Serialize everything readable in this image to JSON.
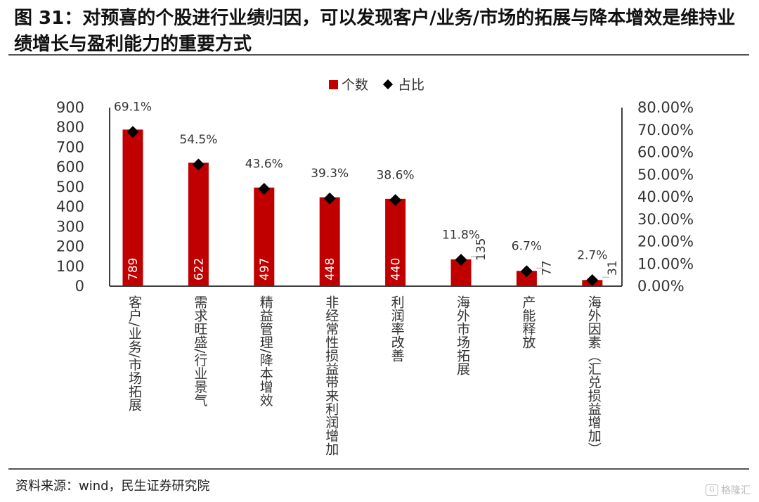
{
  "title": "图 31：对预喜的个股进行业绩归因，可以发现客户/业务/市场的拓展与降本增效是维持业绩增长与盈利能力的重要方式",
  "source": "资料来源：wind，民生证券研究院",
  "watermark": "格隆汇",
  "colors": {
    "bar": "#c00000",
    "marker": "#000000",
    "axis": "#000000",
    "text": "#333333"
  },
  "chart_data": {
    "type": "bar",
    "categories": [
      "客户/业务/市场拓展",
      "需求旺盛/行业景气",
      "精益管理/降本增效",
      "非经常性损益带来利润增加",
      "利润率改善",
      "海外市场拓展",
      "产能释放",
      "海外因素（汇兑损益增加）"
    ],
    "series": [
      {
        "name": "个数",
        "type": "bar",
        "axis": "left",
        "values": [
          789,
          622,
          497,
          448,
          440,
          135,
          77,
          31
        ],
        "labels": [
          "789",
          "622",
          "497",
          "448",
          "440",
          "135",
          "77",
          "31"
        ]
      },
      {
        "name": "占比",
        "type": "marker",
        "axis": "right",
        "values": [
          69.1,
          54.5,
          43.6,
          39.3,
          38.6,
          11.8,
          6.7,
          2.7
        ],
        "labels": [
          "69.1%",
          "54.5%",
          "43.6%",
          "39.3%",
          "38.6%",
          "11.8%",
          "6.7%",
          "2.7%"
        ]
      }
    ],
    "y_left": {
      "min": 0,
      "max": 900,
      "step": 100,
      "ticks": [
        "0",
        "100",
        "200",
        "300",
        "400",
        "500",
        "600",
        "700",
        "800",
        "900"
      ]
    },
    "y_right": {
      "min": 0,
      "max": 80,
      "step": 10,
      "ticks": [
        "0.00%",
        "10.00%",
        "20.00%",
        "30.00%",
        "40.00%",
        "50.00%",
        "60.00%",
        "70.00%",
        "80.00%"
      ]
    },
    "legend": {
      "position": "top-center",
      "items": [
        "个数",
        "占比"
      ]
    },
    "grid": false,
    "xlabel": "",
    "ylabel": ""
  }
}
